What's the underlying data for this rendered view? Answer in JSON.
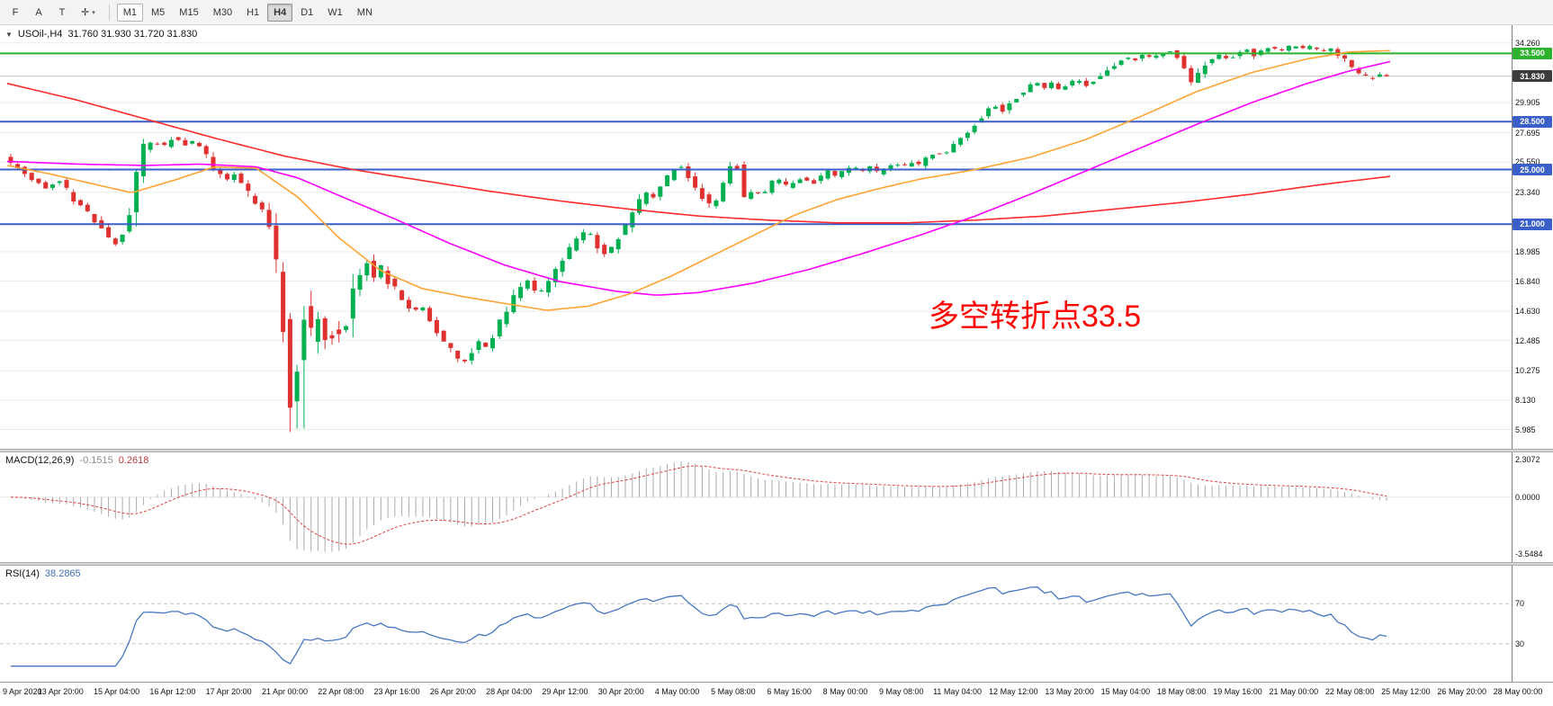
{
  "toolbar": {
    "icon_buttons": [
      {
        "name": "indicators-button",
        "label": "F"
      },
      {
        "name": "text-tool-button",
        "label": "A"
      },
      {
        "name": "trendline-tool-button",
        "label": "T"
      },
      {
        "name": "crosshair-button",
        "label": "✛",
        "caret": true
      }
    ],
    "timeframes": [
      "M1",
      "M5",
      "M15",
      "M30",
      "H1",
      "H4",
      "D1",
      "W1",
      "MN"
    ],
    "active_timeframe": "H4",
    "highlighted_timeframe": "M1"
  },
  "main_chart": {
    "collapse_icon": "▼",
    "symbol": "USOil-,H4",
    "ohlc": "31.760 31.930 31.720 31.830",
    "annotation": "多空转折点33.5",
    "current_price": 31.83,
    "candle_count": 198,
    "crash_spike": {
      "t0": 0.204,
      "t1": 0.213,
      "low": 6.05
    },
    "colors": {
      "up": "#00B050",
      "down": "#E03131",
      "grid": "#EBEBEB",
      "axis_line": "#808080",
      "macd_hist": "#ABABAB",
      "macd_signal": "#E04040",
      "rsi_line": "#4777C2",
      "level_dash": "#C6C6C6",
      "annotation": "#FF0000"
    },
    "axis_labels": [
      {
        "text": "34.260",
        "price": 34.26,
        "type": "grid"
      },
      {
        "text": "33.500",
        "price": 33.5,
        "type": "green",
        "chip_bg": "#2DB22D"
      },
      {
        "text": "31.830",
        "price": 31.83,
        "type": "current",
        "chip_bg": "#3C3C3C"
      },
      {
        "text": "29.905",
        "price": 29.905,
        "type": "grid"
      },
      {
        "text": "28.500",
        "price": 28.5,
        "type": "blue",
        "chip_bg": "#3A5FC8"
      },
      {
        "text": "27.695",
        "price": 27.695,
        "type": "grid"
      },
      {
        "text": "25.550",
        "price": 25.55,
        "type": "grid"
      },
      {
        "text": "25.000",
        "price": 25.0,
        "type": "blue",
        "chip_bg": "#3A5FC8"
      },
      {
        "text": "23.340",
        "price": 23.34,
        "type": "grid"
      },
      {
        "text": "21.000",
        "price": 21.0,
        "type": "blue",
        "chip_bg": "#3A5FC8"
      },
      {
        "text": "18.985",
        "price": 18.985,
        "type": "grid"
      },
      {
        "text": "16.840",
        "price": 16.84,
        "type": "grid"
      },
      {
        "text": "14.630",
        "price": 14.63,
        "type": "grid"
      },
      {
        "text": "12.485",
        "price": 12.485,
        "type": "grid"
      },
      {
        "text": "10.275",
        "price": 10.275,
        "type": "grid"
      },
      {
        "text": "8.130",
        "price": 8.13,
        "type": "grid"
      },
      {
        "text": "5.985",
        "price": 5.985,
        "type": "grid"
      }
    ],
    "hlines": [
      {
        "price": 33.5,
        "label": "33.500",
        "color": "#2DB22D"
      },
      {
        "price": 28.5,
        "label": "28.500",
        "color": "#3A5FC8"
      },
      {
        "price": 25.0,
        "label": "25.000",
        "color": "#3A5FC8"
      },
      {
        "price": 21.0,
        "label": "21.000",
        "color": "#3A5FC8"
      }
    ],
    "price_path": [
      [
        0,
        25.9
      ],
      [
        0.01,
        25.1
      ],
      [
        0.02,
        24.3
      ],
      [
        0.03,
        23.7
      ],
      [
        0.04,
        24.3
      ],
      [
        0.05,
        22.9
      ],
      [
        0.06,
        21.9
      ],
      [
        0.07,
        20.7
      ],
      [
        0.08,
        19.6
      ],
      [
        0.088,
        20.3
      ],
      [
        0.094,
        23.5
      ],
      [
        0.1,
        26.4
      ],
      [
        0.108,
        27.1
      ],
      [
        0.115,
        26.6
      ],
      [
        0.122,
        27.4
      ],
      [
        0.13,
        26.8
      ],
      [
        0.138,
        27.1
      ],
      [
        0.145,
        26.2
      ],
      [
        0.152,
        25.1
      ],
      [
        0.16,
        24.2
      ],
      [
        0.168,
        24.9
      ],
      [
        0.175,
        23.4
      ],
      [
        0.182,
        22.6
      ],
      [
        0.188,
        22
      ],
      [
        0.193,
        20.6
      ],
      [
        0.198,
        17.6
      ],
      [
        0.202,
        13.6
      ],
      [
        0.206,
        9.2
      ],
      [
        0.209,
        6.9
      ],
      [
        0.213,
        12
      ],
      [
        0.217,
        14.8
      ],
      [
        0.221,
        12.2
      ],
      [
        0.226,
        14.6
      ],
      [
        0.23,
        11.6
      ],
      [
        0.234,
        13.3
      ],
      [
        0.24,
        12.6
      ],
      [
        0.246,
        13.5
      ],
      [
        0.252,
        15.9
      ],
      [
        0.258,
        17.3
      ],
      [
        0.263,
        18.3
      ],
      [
        0.268,
        17.1
      ],
      [
        0.273,
        17.9
      ],
      [
        0.278,
        16.8
      ],
      [
        0.284,
        16.2
      ],
      [
        0.29,
        15.2
      ],
      [
        0.296,
        14.5
      ],
      [
        0.302,
        15.1
      ],
      [
        0.308,
        14
      ],
      [
        0.314,
        13
      ],
      [
        0.32,
        12.2
      ],
      [
        0.326,
        11.4
      ],
      [
        0.332,
        10.8
      ],
      [
        0.338,
        11.7
      ],
      [
        0.344,
        12.4
      ],
      [
        0.35,
        12
      ],
      [
        0.356,
        13.3
      ],
      [
        0.362,
        14.4
      ],
      [
        0.368,
        15.5
      ],
      [
        0.374,
        16.3
      ],
      [
        0.38,
        16.9
      ],
      [
        0.386,
        15.7
      ],
      [
        0.392,
        16.5
      ],
      [
        0.398,
        17.4
      ],
      [
        0.404,
        18.4
      ],
      [
        0.41,
        19.3
      ],
      [
        0.416,
        20
      ],
      [
        0.422,
        20.6
      ],
      [
        0.428,
        19.6
      ],
      [
        0.434,
        18.8
      ],
      [
        0.44,
        19.4
      ],
      [
        0.446,
        20.3
      ],
      [
        0.452,
        21.3
      ],
      [
        0.458,
        22.4
      ],
      [
        0.464,
        23.3
      ],
      [
        0.47,
        23
      ],
      [
        0.476,
        23.9
      ],
      [
        0.482,
        24.7
      ],
      [
        0.488,
        25.4
      ],
      [
        0.494,
        24.7
      ],
      [
        0.5,
        23.8
      ],
      [
        0.506,
        22.9
      ],
      [
        0.512,
        22.2
      ],
      [
        0.518,
        23.4
      ],
      [
        0.524,
        24.7
      ],
      [
        0.528,
        26.2
      ],
      [
        0.532,
        24
      ],
      [
        0.536,
        22.7
      ],
      [
        0.542,
        23.5
      ],
      [
        0.548,
        23.1
      ],
      [
        0.554,
        23.9
      ],
      [
        0.56,
        24.3
      ],
      [
        0.566,
        23.7
      ],
      [
        0.572,
        24.1
      ],
      [
        0.578,
        24.5
      ],
      [
        0.584,
        23.9
      ],
      [
        0.59,
        24.4
      ],
      [
        0.596,
        24.9
      ],
      [
        0.602,
        24.5
      ],
      [
        0.608,
        25
      ],
      [
        0.614,
        25.3
      ],
      [
        0.62,
        24.8
      ],
      [
        0.626,
        25.2
      ],
      [
        0.632,
        24.7
      ],
      [
        0.638,
        25.1
      ],
      [
        0.644,
        25.4
      ],
      [
        0.65,
        25.2
      ],
      [
        0.656,
        25.6
      ],
      [
        0.662,
        25.3
      ],
      [
        0.668,
        25.9
      ],
      [
        0.674,
        26.3
      ],
      [
        0.68,
        26.1
      ],
      [
        0.686,
        26.7
      ],
      [
        0.692,
        27.2
      ],
      [
        0.698,
        27.8
      ],
      [
        0.704,
        28.5
      ],
      [
        0.71,
        29.2
      ],
      [
        0.716,
        29.7
      ],
      [
        0.722,
        29.3
      ],
      [
        0.728,
        29.9
      ],
      [
        0.734,
        30.5
      ],
      [
        0.74,
        31
      ],
      [
        0.746,
        31.4
      ],
      [
        0.752,
        30.9
      ],
      [
        0.758,
        31.3
      ],
      [
        0.764,
        30.8
      ],
      [
        0.77,
        31.2
      ],
      [
        0.776,
        31.6
      ],
      [
        0.782,
        31.1
      ],
      [
        0.788,
        31.5
      ],
      [
        0.794,
        31.9
      ],
      [
        0.8,
        32.4
      ],
      [
        0.806,
        32.9
      ],
      [
        0.812,
        33.2
      ],
      [
        0.818,
        33
      ],
      [
        0.824,
        33.4
      ],
      [
        0.83,
        33.1
      ],
      [
        0.836,
        33.5
      ],
      [
        0.842,
        33.8
      ],
      [
        0.848,
        33.3
      ],
      [
        0.854,
        32.5
      ],
      [
        0.858,
        31.2
      ],
      [
        0.862,
        31.9
      ],
      [
        0.868,
        32.6
      ],
      [
        0.874,
        33.1
      ],
      [
        0.88,
        33.4
      ],
      [
        0.886,
        33.1
      ],
      [
        0.892,
        33.5
      ],
      [
        0.898,
        33.8
      ],
      [
        0.904,
        33.4
      ],
      [
        0.91,
        33.7
      ],
      [
        0.916,
        34
      ],
      [
        0.922,
        33.6
      ],
      [
        0.928,
        33.9
      ],
      [
        0.934,
        34.1
      ],
      [
        0.94,
        33.8
      ],
      [
        0.946,
        34
      ],
      [
        0.952,
        33.6
      ],
      [
        0.958,
        33.9
      ],
      [
        0.964,
        33.5
      ],
      [
        0.97,
        33
      ],
      [
        0.976,
        32.4
      ],
      [
        0.982,
        31.9
      ],
      [
        0.988,
        31.6
      ],
      [
        0.994,
        31.9
      ],
      [
        1,
        31.83
      ]
    ],
    "ma_lines": [
      {
        "name": "ma-red",
        "color": "#FF2A2A",
        "path": [
          [
            0,
            31.3
          ],
          [
            0.05,
            30.1
          ],
          [
            0.1,
            28.7
          ],
          [
            0.15,
            27.3
          ],
          [
            0.2,
            26
          ],
          [
            0.25,
            25
          ],
          [
            0.3,
            24.2
          ],
          [
            0.35,
            23.4
          ],
          [
            0.4,
            22.7
          ],
          [
            0.45,
            22.1
          ],
          [
            0.5,
            21.6
          ],
          [
            0.55,
            21.3
          ],
          [
            0.6,
            21.1
          ],
          [
            0.65,
            21.1
          ],
          [
            0.7,
            21.3
          ],
          [
            0.75,
            21.6
          ],
          [
            0.8,
            22.1
          ],
          [
            0.85,
            22.6
          ],
          [
            0.9,
            23.2
          ],
          [
            0.95,
            23.9
          ],
          [
            1,
            24.5
          ]
        ]
      },
      {
        "name": "ma-magenta",
        "color": "#FF00FF",
        "path": [
          [
            0,
            25.6
          ],
          [
            0.05,
            25.4
          ],
          [
            0.1,
            25.3
          ],
          [
            0.14,
            25.4
          ],
          [
            0.18,
            25.2
          ],
          [
            0.21,
            24.4
          ],
          [
            0.24,
            23.1
          ],
          [
            0.28,
            21.4
          ],
          [
            0.32,
            19.6
          ],
          [
            0.36,
            18
          ],
          [
            0.4,
            16.8
          ],
          [
            0.44,
            16.1
          ],
          [
            0.47,
            15.8
          ],
          [
            0.5,
            16
          ],
          [
            0.54,
            16.7
          ],
          [
            0.58,
            17.7
          ],
          [
            0.62,
            18.9
          ],
          [
            0.66,
            20.2
          ],
          [
            0.7,
            21.6
          ],
          [
            0.74,
            23.2
          ],
          [
            0.78,
            24.9
          ],
          [
            0.82,
            26.6
          ],
          [
            0.86,
            28.3
          ],
          [
            0.9,
            29.9
          ],
          [
            0.94,
            31.3
          ],
          [
            0.97,
            32.2
          ],
          [
            1,
            32.9
          ]
        ]
      },
      {
        "name": "ma-orange",
        "color": "#FFA333",
        "path": [
          [
            0,
            25.3
          ],
          [
            0.03,
            24.7
          ],
          [
            0.06,
            24
          ],
          [
            0.09,
            23.3
          ],
          [
            0.12,
            24.2
          ],
          [
            0.15,
            25.2
          ],
          [
            0.18,
            25.1
          ],
          [
            0.21,
            23
          ],
          [
            0.24,
            20
          ],
          [
            0.27,
            17.6
          ],
          [
            0.3,
            16.3
          ],
          [
            0.33,
            15.7
          ],
          [
            0.36,
            15.2
          ],
          [
            0.39,
            14.7
          ],
          [
            0.42,
            15
          ],
          [
            0.45,
            15.9
          ],
          [
            0.48,
            17.2
          ],
          [
            0.51,
            18.7
          ],
          [
            0.54,
            20.2
          ],
          [
            0.57,
            21.7
          ],
          [
            0.6,
            22.8
          ],
          [
            0.63,
            23.6
          ],
          [
            0.66,
            24.3
          ],
          [
            0.7,
            25
          ],
          [
            0.74,
            25.9
          ],
          [
            0.78,
            27.2
          ],
          [
            0.82,
            28.9
          ],
          [
            0.86,
            30.7
          ],
          [
            0.9,
            32.1
          ],
          [
            0.94,
            33.1
          ],
          [
            0.97,
            33.6
          ],
          [
            1,
            33.7
          ]
        ]
      }
    ]
  },
  "macd_panel": {
    "title": "MACD(12,26,9)",
    "value_main": "-0.1515",
    "value_signal": "0.2618",
    "axis_labels": [
      "2.3072",
      "0.0000",
      "-3.5484"
    ],
    "range": {
      "max": 2.3072,
      "min": -3.5484
    }
  },
  "rsi_panel": {
    "title": "RSI(14)",
    "value": "38.2865",
    "levels": [
      70,
      30
    ],
    "axis_labels": [
      "70",
      "30"
    ]
  },
  "time_axis": {
    "labels": [
      "9 Apr 2020",
      "13 Apr 20:00",
      "15 Apr 04:00",
      "16 Apr 12:00",
      "17 Apr 20:00",
      "21 Apr 00:00",
      "22 Apr 08:00",
      "23 Apr 16:00",
      "26 Apr 20:00",
      "28 Apr 04:00",
      "29 Apr 12:00",
      "30 Apr 20:00",
      "4 May 00:00",
      "5 May 08:00",
      "6 May 16:00",
      "8 May 00:00",
      "9 May 08:00",
      "11 May 04:00",
      "12 May 12:00",
      "13 May 20:00",
      "15 May 04:00",
      "18 May 08:00",
      "19 May 16:00",
      "21 May 00:00",
      "22 May 08:00",
      "25 May 12:00",
      "26 May 20:00",
      "28 May 00:00"
    ]
  }
}
